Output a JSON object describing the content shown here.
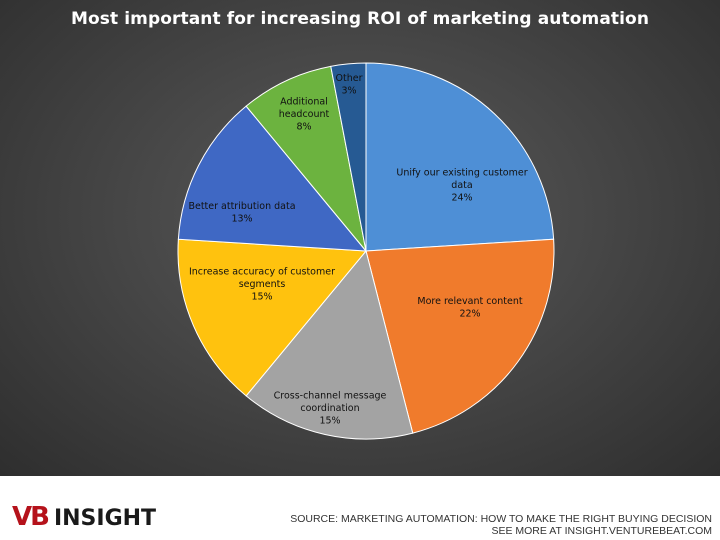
{
  "chart_data": {
    "type": "pie",
    "title": "Most important for increasing ROI of marketing automation",
    "slices": [
      {
        "label_lines": [
          "Unify our existing customer",
          "data"
        ],
        "value": 24,
        "value_label": "24%",
        "color": "#4e8fd6"
      },
      {
        "label_lines": [
          "More relevant content"
        ],
        "value": 22,
        "value_label": "22%",
        "color": "#f07b2c"
      },
      {
        "label_lines": [
          "Cross-channel message",
          "coordination"
        ],
        "value": 15,
        "value_label": "15%",
        "color": "#a3a3a3"
      },
      {
        "label_lines": [
          "Increase accuracy of customer",
          "segments"
        ],
        "value": 15,
        "value_label": "15%",
        "color": "#ffc20e"
      },
      {
        "label_lines": [
          "Better attribution data"
        ],
        "value": 13,
        "value_label": "13%",
        "color": "#3f68c4"
      },
      {
        "label_lines": [
          "Additional",
          "headcount"
        ],
        "value": 8,
        "value_label": "8%",
        "color": "#6cb33f"
      },
      {
        "label_lines": [
          "Other"
        ],
        "value": 3,
        "value_label": "3%",
        "color": "#265a93"
      }
    ]
  },
  "footer": {
    "logo_vb": "VB",
    "logo_insight": "INSIGHT",
    "source_line1": "SOURCE: MARKETING AUTOMATION: HOW TO MAKE THE RIGHT BUYING DECISION",
    "source_line2": "SEE MORE AT INSIGHT.VENTUREBEAT.COM"
  }
}
